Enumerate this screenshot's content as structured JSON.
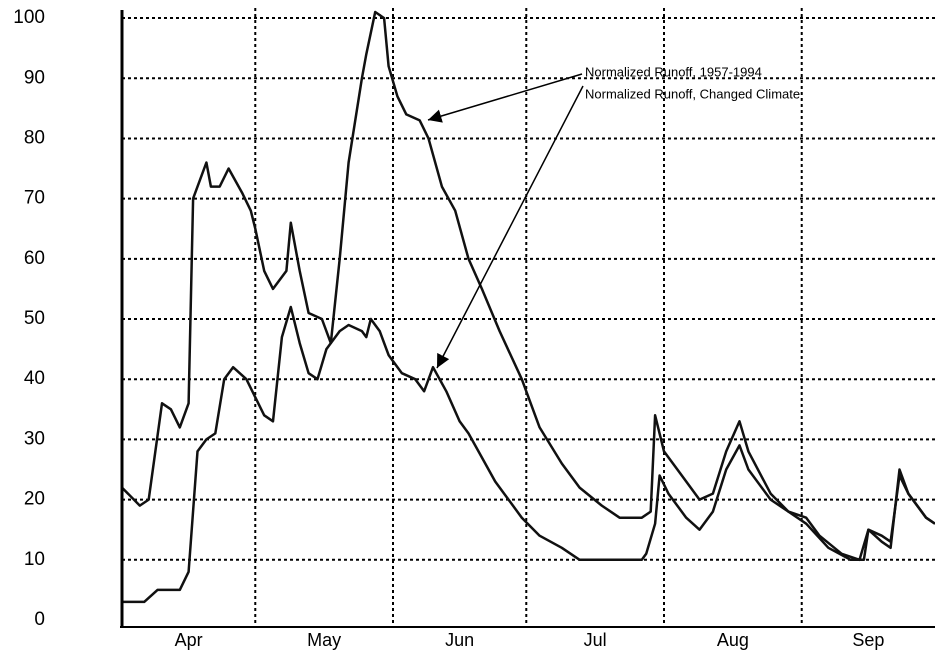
{
  "chart_data": {
    "type": "line",
    "xlim": [
      0,
      183
    ],
    "xticks": [
      {
        "value": 15,
        "label": "Apr"
      },
      {
        "value": 45.5,
        "label": "May"
      },
      {
        "value": 76,
        "label": "Jun"
      },
      {
        "value": 106.5,
        "label": "Jul"
      },
      {
        "value": 137.5,
        "label": "Aug"
      },
      {
        "value": 168,
        "label": "Sep"
      }
    ],
    "x_grid": [
      30,
      61,
      91,
      122,
      153
    ],
    "ylim": [
      -1,
      103
    ],
    "yticks": [
      0,
      10,
      20,
      30,
      40,
      50,
      60,
      70,
      80,
      90,
      100
    ],
    "grid": true,
    "series": [
      {
        "name": "Normalized Runoff, 1957-1994",
        "color": "#111111",
        "x": [
          0,
          4,
          6,
          9,
          11,
          13,
          15,
          16,
          19,
          20,
          22,
          24,
          27,
          29,
          30,
          32,
          34,
          37,
          38,
          40,
          42,
          45,
          47,
          49,
          51,
          54,
          55,
          57,
          59,
          60,
          62,
          64,
          67,
          69,
          72,
          75,
          78,
          81,
          85,
          90,
          94,
          99,
          103,
          108,
          112,
          117,
          119,
          120,
          122,
          126,
          130,
          133,
          136,
          139,
          141,
          146,
          150,
          154,
          157,
          162,
          166,
          168,
          171,
          173,
          175,
          177,
          181,
          183
        ],
        "values": [
          22,
          19,
          20,
          36,
          35,
          32,
          36,
          70,
          76,
          72,
          72,
          75,
          71,
          68,
          65,
          58,
          55,
          58,
          66,
          58,
          51,
          50,
          46,
          60,
          76,
          90,
          94,
          101,
          100,
          92,
          87,
          84,
          83,
          80,
          72,
          68,
          60,
          55,
          48,
          40,
          32,
          26,
          22,
          19,
          17,
          17,
          18,
          34,
          28,
          24,
          20,
          21,
          28,
          33,
          28,
          21,
          18,
          17,
          14,
          11,
          10,
          15,
          13,
          12,
          25,
          21,
          17,
          16
        ]
      },
      {
        "name": "Normalized Runoff, Changed Climate",
        "color": "#111111",
        "x": [
          0,
          5,
          8,
          13,
          15,
          17,
          19,
          21,
          23,
          25,
          28,
          30,
          32,
          34,
          36,
          38,
          40,
          42,
          44,
          46,
          49,
          51,
          54,
          55,
          56,
          58,
          60,
          63,
          66,
          68,
          70,
          73,
          76,
          78,
          81,
          84,
          86,
          90,
          94,
          99,
          103,
          112,
          117,
          118,
          120,
          121,
          123,
          127,
          130,
          133,
          136,
          139,
          141,
          146,
          150,
          154,
          159,
          164,
          167,
          168,
          171,
          173,
          175,
          177,
          181,
          183
        ],
        "values": [
          3,
          3,
          5,
          5,
          8,
          28,
          30,
          31,
          40,
          42,
          40,
          37,
          34,
          33,
          47,
          52,
          46,
          41,
          40,
          45,
          48,
          49,
          48,
          47,
          50,
          48,
          44,
          41,
          40,
          38,
          42,
          38,
          33,
          31,
          27,
          23,
          21,
          17,
          14,
          12,
          10,
          10,
          10,
          11,
          16,
          24,
          21,
          17,
          15,
          18,
          25,
          29,
          25,
          20,
          18,
          16,
          12,
          10,
          10,
          15,
          14,
          13,
          24,
          21,
          17,
          16
        ]
      }
    ]
  }
}
